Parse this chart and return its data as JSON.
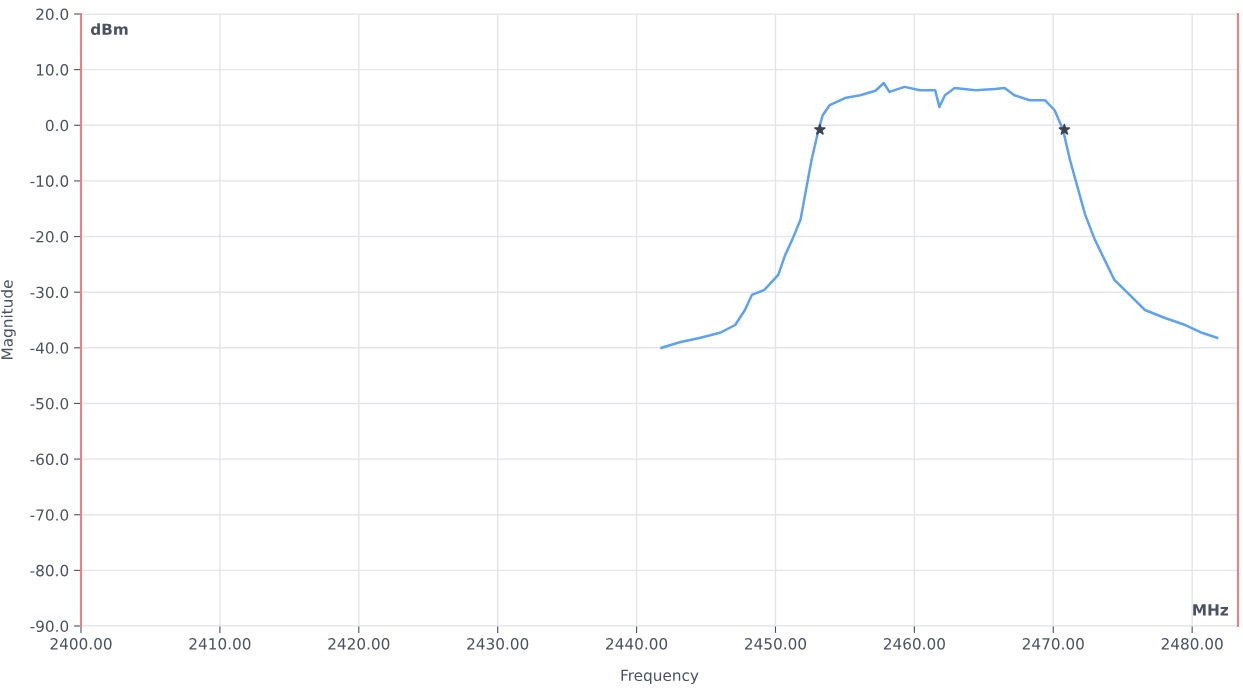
{
  "chart_data": {
    "type": "line",
    "xlabel": "Frequency",
    "ylabel": "Magnitude",
    "annotations": [
      "dBm",
      "MHz"
    ],
    "xlim": [
      2400,
      2483.3
    ],
    "ylim": [
      -90,
      20
    ],
    "xticks": [
      {
        "value": 2400,
        "label": "2400.00"
      },
      {
        "value": 2410,
        "label": "2410.00"
      },
      {
        "value": 2420,
        "label": "2420.00"
      },
      {
        "value": 2430,
        "label": "2430.00"
      },
      {
        "value": 2440,
        "label": "2440.00"
      },
      {
        "value": 2450,
        "label": "2450.00"
      },
      {
        "value": 2460,
        "label": "2460.00"
      },
      {
        "value": 2470,
        "label": "2470.00"
      },
      {
        "value": 2480,
        "label": "2480.00"
      }
    ],
    "yticks": [
      {
        "value": 20,
        "label": "20.0"
      },
      {
        "value": 10,
        "label": "10.0"
      },
      {
        "value": 0,
        "label": "0.0"
      },
      {
        "value": -10,
        "label": "-10.0"
      },
      {
        "value": -20,
        "label": "-20.0"
      },
      {
        "value": -30,
        "label": "-30.0"
      },
      {
        "value": -40,
        "label": "-40.0"
      },
      {
        "value": -50,
        "label": "-50.0"
      },
      {
        "value": -60,
        "label": "-60.0"
      },
      {
        "value": -70,
        "label": "-70.0"
      },
      {
        "value": -80,
        "label": "-80.0"
      },
      {
        "value": -90,
        "label": "-90.0"
      }
    ],
    "grid": true,
    "legend": false,
    "ref_lines": [
      {
        "axis": "x",
        "value": 2400,
        "color": "#f08080"
      },
      {
        "axis": "x",
        "value": 2483.3,
        "color": "#f08080"
      }
    ],
    "series": [
      {
        "color": "#5fa2f2",
        "marker": "none",
        "x": [
          2441.8,
          2443.1,
          2444.6,
          2446.0,
          2447.1,
          2447.8,
          2448.3,
          2449.2,
          2450.2,
          2450.7,
          2451.2,
          2451.8,
          2452.2,
          2452.6,
          2453.1,
          2453.4,
          2453.9,
          2455.0,
          2456.1,
          2457.2,
          2457.8,
          2458.2,
          2459.3,
          2460.4,
          2461.5,
          2461.8,
          2462.2,
          2462.9,
          2464.4,
          2465.8,
          2466.5,
          2467.2,
          2468.3,
          2469.4,
          2470.1,
          2470.7,
          2471.2,
          2471.8,
          2472.3,
          2473.0,
          2473.7,
          2474.4,
          2475.5,
          2476.6,
          2478.0,
          2479.5,
          2480.6,
          2481.8
        ],
        "values": [
          -40.0,
          -39.0,
          -38.2,
          -37.3,
          -35.9,
          -33.2,
          -30.5,
          -29.6,
          -26.9,
          -23.3,
          -20.6,
          -17.0,
          -11.6,
          -6.2,
          -0.8,
          1.8,
          3.6,
          4.9,
          5.4,
          6.2,
          7.6,
          6.0,
          6.9,
          6.3,
          6.3,
          3.3,
          5.4,
          6.7,
          6.3,
          6.5,
          6.7,
          5.4,
          4.5,
          4.5,
          2.7,
          -0.8,
          -6.2,
          -11.6,
          -16.1,
          -20.6,
          -24.2,
          -27.8,
          -30.5,
          -33.2,
          -34.6,
          -35.9,
          -37.2,
          -38.2
        ]
      },
      {
        "type": "scatter",
        "color": "#3d4450",
        "marker": "star",
        "x": [
          2453.2,
          2470.8
        ],
        "values": [
          -0.8,
          -0.8
        ]
      }
    ]
  }
}
